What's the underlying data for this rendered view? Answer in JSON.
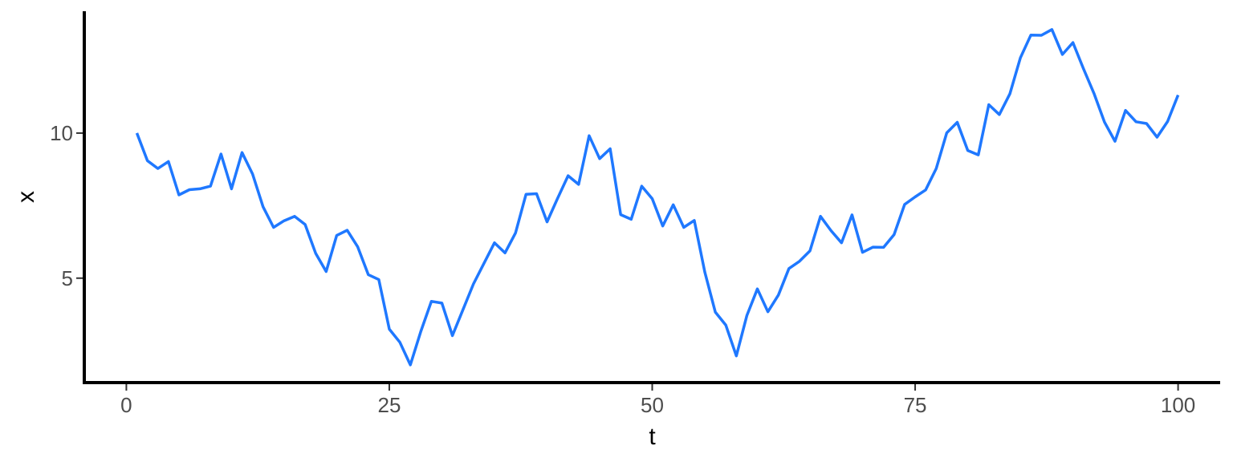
{
  "chart_data": {
    "type": "line",
    "title": "",
    "xlabel": "t",
    "ylabel": "x",
    "xlim": [
      -4,
      104
    ],
    "ylim": [
      1.4,
      14.2
    ],
    "xticks": [
      0,
      25,
      50,
      75,
      100
    ],
    "yticks": [
      5,
      10
    ],
    "grid": false,
    "legend": "none",
    "series": [
      {
        "color": "#1f78ff",
        "x": [
          1,
          2,
          3,
          4,
          5,
          6,
          7,
          8,
          9,
          10,
          11,
          12,
          13,
          14,
          15,
          16,
          17,
          18,
          19,
          20,
          21,
          22,
          23,
          24,
          25,
          26,
          27,
          28,
          29,
          30,
          31,
          32,
          33,
          34,
          35,
          36,
          37,
          38,
          39,
          40,
          41,
          42,
          43,
          44,
          45,
          46,
          47,
          48,
          49,
          50,
          51,
          52,
          53,
          54,
          55,
          56,
          57,
          58,
          59,
          60,
          61,
          62,
          63,
          64,
          65,
          66,
          67,
          68,
          69,
          70,
          71,
          72,
          73,
          74,
          75,
          76,
          77,
          78,
          79,
          80,
          81,
          82,
          83,
          84,
          85,
          86,
          87,
          88,
          89,
          90,
          91,
          92,
          93,
          94,
          95,
          96,
          97,
          98,
          99,
          100
        ],
        "y": [
          10.0,
          9.05,
          8.78,
          9.02,
          7.87,
          8.05,
          8.08,
          8.17,
          9.28,
          8.08,
          9.33,
          8.59,
          7.46,
          6.75,
          6.98,
          7.13,
          6.85,
          5.86,
          5.23,
          6.47,
          6.65,
          6.08,
          5.12,
          4.95,
          3.24,
          2.79,
          2.01,
          3.17,
          4.2,
          4.14,
          3.02,
          3.91,
          4.8,
          5.51,
          6.22,
          5.87,
          6.56,
          7.89,
          7.91,
          6.94,
          7.75,
          8.53,
          8.23,
          9.91,
          9.12,
          9.46,
          7.19,
          7.03,
          8.17,
          7.74,
          6.8,
          7.53,
          6.75,
          6.99,
          5.21,
          3.83,
          3.38,
          2.32,
          3.71,
          4.63,
          3.84,
          4.42,
          5.33,
          5.58,
          5.94,
          7.13,
          6.64,
          6.22,
          7.18,
          5.89,
          6.07,
          6.06,
          6.5,
          7.54,
          7.8,
          8.04,
          8.78,
          10.01,
          10.37,
          9.4,
          9.25,
          10.98,
          10.64,
          11.35,
          12.59,
          13.38,
          13.37,
          13.57,
          12.71,
          13.12,
          12.22,
          11.37,
          10.38,
          9.72,
          10.78,
          10.39,
          10.33,
          9.86,
          10.4,
          11.31
        ]
      }
    ]
  }
}
